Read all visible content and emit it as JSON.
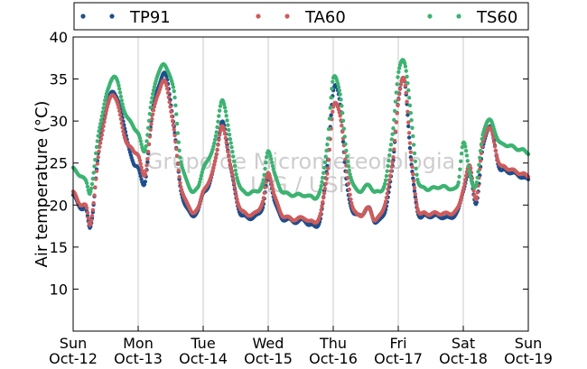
{
  "chart_data": {
    "type": "scatter",
    "ylabel": "Air temperature (°C)",
    "ylim": [
      5,
      40
    ],
    "yticks": [
      10,
      15,
      20,
      25,
      30,
      35,
      40
    ],
    "xlim": [
      "2020-10-12",
      "2020-10-19"
    ],
    "xtick_labels": [
      {
        "day": "Sun",
        "date": "Oct-12"
      },
      {
        "day": "Mon",
        "date": "Oct-13"
      },
      {
        "day": "Tue",
        "date": "Oct-14"
      },
      {
        "day": "Wed",
        "date": "Oct-15"
      },
      {
        "day": "Thu",
        "date": "Oct-16"
      },
      {
        "day": "Fri",
        "date": "Oct-17"
      },
      {
        "day": "Sat",
        "date": "Oct-18"
      },
      {
        "day": "Sun",
        "date": "Oct-19"
      }
    ],
    "grid": "vertical",
    "legend_position": "top",
    "watermark": [
      "Grupo de Micrometeorologia",
      "IAG / USP"
    ],
    "x_days": [
      0,
      0.1,
      0.2,
      0.27,
      0.4,
      0.55,
      0.65,
      0.8,
      0.92,
      1,
      1.1,
      1.2,
      1.3,
      1.42,
      1.55,
      1.65,
      1.8,
      1.92,
      2,
      2.1,
      2.2,
      2.3,
      2.42,
      2.55,
      2.65,
      2.8,
      2.92,
      3,
      3.1,
      3.2,
      3.3,
      3.42,
      3.55,
      3.65,
      3.8,
      3.92,
      4,
      4.1,
      4.2,
      4.3,
      4.42,
      4.55,
      4.65,
      4.8,
      4.92,
      5,
      5.1,
      5.2,
      5.3,
      5.42,
      5.55,
      5.65,
      5.8,
      5.92,
      6,
      6.1,
      6.2,
      6.3,
      6.42,
      6.55,
      6.65,
      6.8,
      6.92,
      7
    ],
    "series": [
      {
        "name": "TP91",
        "color": "#1f4e8c",
        "values": [
          21.2,
          19.8,
          19.4,
          17.6,
          27,
          32.5,
          33.2,
          29,
          25,
          24.6,
          22.4,
          30,
          33.8,
          35.5,
          29.5,
          22,
          19,
          19.3,
          21.5,
          22.5,
          26,
          29.8,
          24.6,
          19.5,
          18.6,
          18.6,
          19.9,
          23.5,
          20.5,
          18.5,
          18.3,
          18,
          18.2,
          17.6,
          18.3,
          25.5,
          33.5,
          32.5,
          23,
          19.3,
          18.8,
          19.6,
          18,
          19.4,
          25,
          32.5,
          34.6,
          25,
          19.2,
          18.7,
          18.7,
          18.6,
          18.5,
          19.3,
          21.8,
          24,
          20.3,
          26.8,
          29.3,
          24.6,
          24.1,
          23.7,
          23.3,
          23
        ]
      },
      {
        "name": "TA60",
        "color": "#cd5c5c",
        "values": [
          21.5,
          20.2,
          19.8,
          18,
          26.5,
          32.2,
          32.8,
          28,
          26.5,
          26,
          23.5,
          29.5,
          33.2,
          34.5,
          29,
          22.5,
          19.5,
          19.5,
          21.8,
          22.8,
          26,
          29.3,
          24.6,
          20,
          19,
          19,
          20.5,
          23.8,
          21,
          19,
          18.5,
          18.3,
          18.5,
          18,
          18.8,
          24.5,
          31.5,
          31,
          24.6,
          19.7,
          18.8,
          19.6,
          18.2,
          20.3,
          25.5,
          32.3,
          34.8,
          25.5,
          19.6,
          19,
          19,
          19,
          19,
          19.6,
          22,
          24.6,
          20.8,
          27.5,
          29,
          25,
          24.5,
          24,
          23.7,
          23.4
        ]
      },
      {
        "name": "TS60",
        "color": "#3cb371",
        "values": [
          24.3,
          23.6,
          22.8,
          21.8,
          29,
          34,
          35.2,
          31,
          29.5,
          28.5,
          26.5,
          32,
          35.6,
          36.5,
          33.5,
          25.5,
          22,
          22,
          24.5,
          25.6,
          28.5,
          32.5,
          27.5,
          22.5,
          21.5,
          21.6,
          22.5,
          26.5,
          23.6,
          21.8,
          21.3,
          21.2,
          21.2,
          21,
          21.6,
          28,
          35,
          33.5,
          26.5,
          22.5,
          21.7,
          22.4,
          21.5,
          22.7,
          29,
          35.5,
          37,
          30.2,
          23,
          22,
          22,
          22.2,
          22,
          22.4,
          27.5,
          23.7,
          22.4,
          28.5,
          30,
          27.5,
          27.2,
          26.8,
          26.5,
          26.2
        ]
      }
    ]
  }
}
